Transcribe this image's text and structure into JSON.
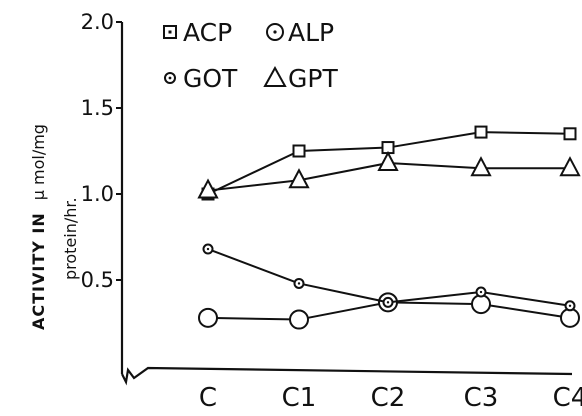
{
  "chart_data": {
    "type": "line",
    "title": "",
    "xlabel": "",
    "ylabel_bold": "ACTIVITY IN",
    "ylabel_unit": "μ mol/mg",
    "ylabel_line2": "protein/hr.",
    "categories": [
      "C",
      "C1",
      "C2",
      "C3",
      "C4"
    ],
    "ylim": [
      0,
      2.0
    ],
    "yticks": [
      {
        "value": 0.5,
        "label": "0.5"
      },
      {
        "value": 1.0,
        "label": "1.0"
      },
      {
        "value": 1.5,
        "label": "1.5"
      },
      {
        "value": 2.0,
        "label": "2.0"
      }
    ],
    "grid": false,
    "legend_position": "top-left",
    "series": [
      {
        "name": "ACP",
        "marker": "square",
        "values": [
          1.0,
          1.25,
          1.27,
          1.36,
          1.35
        ]
      },
      {
        "name": "ALP",
        "marker": "large-circle-dot",
        "values": [
          0.28,
          0.27,
          0.37,
          0.36,
          0.28
        ]
      },
      {
        "name": "GOT",
        "marker": "small-circle-dot",
        "values": [
          0.68,
          0.48,
          0.37,
          0.43,
          0.35
        ]
      },
      {
        "name": "GPT",
        "marker": "triangle",
        "values": [
          1.02,
          1.08,
          1.18,
          1.15,
          1.15
        ]
      }
    ],
    "line_color": "#111111"
  }
}
